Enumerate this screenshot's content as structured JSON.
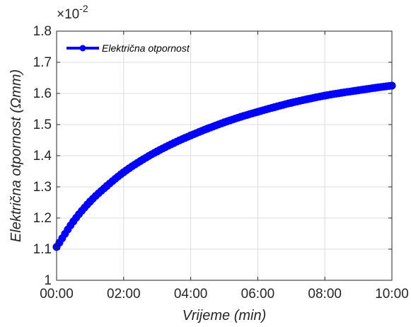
{
  "chart_data": {
    "type": "line",
    "xlabel": "Vrijeme (min)",
    "ylabel": "Električna otpornost (Ωmm)",
    "y_exponent_label": "×10",
    "y_exponent_power": "-2",
    "xlim": [
      0,
      10
    ],
    "ylim": [
      1,
      1.8
    ],
    "x_ticks": [
      0,
      2,
      4,
      6,
      8,
      10
    ],
    "x_tick_labels": [
      "00:00",
      "02:00",
      "04:00",
      "06:00",
      "08:00",
      "10:00"
    ],
    "y_ticks": [
      1,
      1.1,
      1.2,
      1.3,
      1.4,
      1.5,
      1.6,
      1.7,
      1.8
    ],
    "y_tick_labels": [
      "1",
      "1.1",
      "1.2",
      "1.3",
      "1.4",
      "1.5",
      "1.6",
      "1.7",
      "1.8"
    ],
    "grid": true,
    "legend_position": "top-left",
    "series": [
      {
        "name": "Električna otpornost",
        "color": "#0000ff",
        "marker": "circle",
        "line_style": "dashed",
        "x": [
          0,
          0.5,
          1,
          1.5,
          2,
          2.5,
          3,
          3.5,
          4,
          4.5,
          5,
          5.5,
          6,
          6.5,
          7,
          7.5,
          8,
          8.5,
          9,
          9.5,
          10
        ],
        "y": [
          1.107,
          1.189,
          1.253,
          1.303,
          1.347,
          1.383,
          1.414,
          1.441,
          1.465,
          1.487,
          1.507,
          1.525,
          1.541,
          1.556,
          1.57,
          1.582,
          1.593,
          1.602,
          1.61,
          1.618,
          1.625
        ]
      }
    ]
  }
}
